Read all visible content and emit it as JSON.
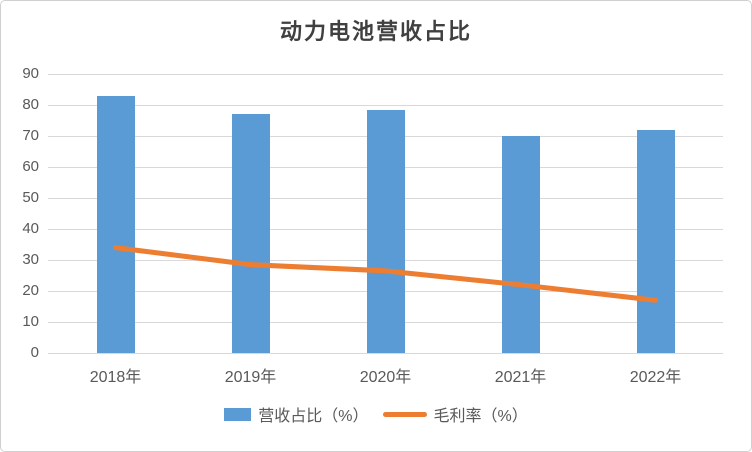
{
  "title": "动力电池营收占比",
  "chart_data": {
    "type": "bar",
    "subtype": "bar-line-combo",
    "title": "动力电池营收占比",
    "categories": [
      "2018年",
      "2019年",
      "2020年",
      "2021年",
      "2022年"
    ],
    "series": [
      {
        "name": "营收占比（%）",
        "type": "bar",
        "color": "#5B9BD5",
        "values": [
          83,
          77,
          78.5,
          70,
          72
        ]
      },
      {
        "name": "毛利率（%）",
        "type": "line",
        "color": "#ED7D31",
        "values": [
          34,
          28.5,
          26.5,
          22,
          17
        ]
      }
    ],
    "xlabel": "",
    "ylabel": "",
    "ylim": [
      0,
      90
    ],
    "yticks": [
      0,
      10,
      20,
      30,
      40,
      50,
      60,
      70,
      80,
      90
    ],
    "grid": "horizontal",
    "legend_position": "bottom"
  },
  "colors": {
    "bar": "#5B9BD5",
    "line": "#ED7D31",
    "gridline": "#d9d9d9",
    "tick_text": "#595959",
    "title_text": "#404040",
    "frame_border": "#d0d0d0"
  }
}
